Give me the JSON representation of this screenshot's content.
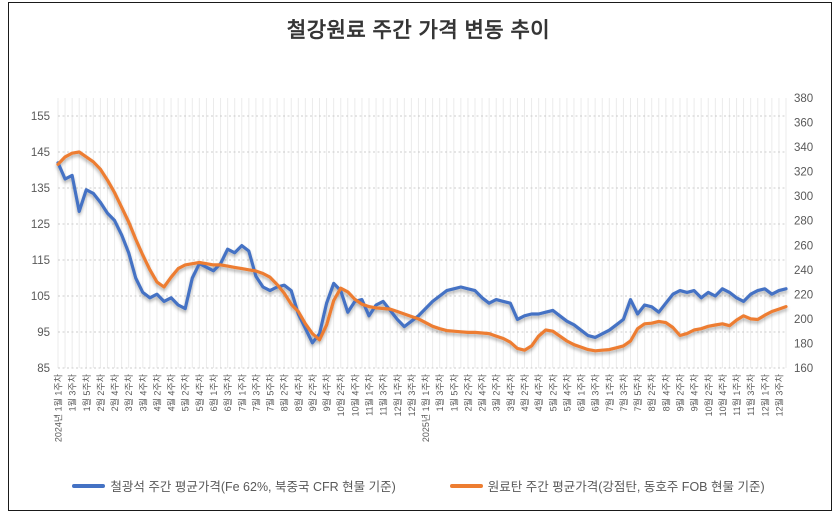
{
  "title": "철강원료 주간 가격 변동 추이",
  "legend": {
    "items": [
      {
        "label": "철광석 주간 평균가격(Fe 62%, 북중국 CFR 현물 기준)",
        "color": "#4472C4"
      },
      {
        "label": "원료탄 주간 평균가격(강점탄, 동호주 FOB 현물 기준)",
        "color": "#ED7D31"
      }
    ]
  },
  "chart_data": {
    "type": "line",
    "title": "철강원료 주간 가격 변동 추이",
    "x_label_every": 2,
    "x_labels": [
      "2024년 1월 1주차",
      "1월 3주차",
      "1월 5주차",
      "2월 2주차",
      "2월 4주차",
      "3월 2주차",
      "3월 4주차",
      "4월 2주차",
      "4월 4주차",
      "5월 2주차",
      "5월 4주차",
      "6월 1주차",
      "6월 3주차",
      "7월 1주차",
      "7월 3주차",
      "7월 5주차",
      "8월 2주차",
      "8월 4주차",
      "9월 2주차",
      "9월 4주차",
      "10월 2주차",
      "10월 4주차",
      "11월 1주차",
      "11월 3주차",
      "12월 1주차",
      "12월 3주차",
      "2025년 1월 1주차",
      "1월 3주차",
      "1월 5주차",
      "2월 2주차",
      "2월 4주차",
      "3월 2주차",
      "3월 4주차",
      "4월 2주차",
      "4월 4주차",
      "5월 2주차",
      "5월 4주차",
      "6월 1주차",
      "6월 3주차",
      "7월 1주차",
      "7월 3주차",
      "7월 5주차",
      "8월 2주차",
      "8월 4주차",
      "9월 2주차",
      "9월 4주차",
      "10월 2주차",
      "10월 4주차",
      "11월 1주차",
      "11월 3주차",
      "12월 1주차",
      "12월 3주차"
    ],
    "left_axis": {
      "min": 85,
      "max": 160,
      "ticks": [
        85,
        95,
        105,
        115,
        125,
        135,
        145,
        155
      ]
    },
    "right_axis": {
      "min": 160,
      "max": 380,
      "ticks": [
        160,
        180,
        200,
        220,
        240,
        260,
        280,
        300,
        320,
        340,
        360,
        380
      ]
    },
    "grid": {
      "vertical_per_week": true,
      "horizontal_dashed": true
    },
    "legend_position": "bottom",
    "series": [
      {
        "name": "철광석 주간 평균가격(Fe 62%, 북중국 CFR 현물 기준)",
        "axis": "left",
        "color": "#4472C4",
        "values": [
          142,
          137.5,
          138.5,
          128.5,
          134.5,
          133.5,
          131,
          128,
          126,
          122,
          117,
          110,
          106,
          104.5,
          105.5,
          103.5,
          104.5,
          102.5,
          101.5,
          110,
          114,
          113,
          112,
          114,
          118,
          117,
          119,
          117.5,
          110.5,
          107.5,
          106.5,
          107.5,
          108,
          106.5,
          100,
          96,
          92,
          94.5,
          103,
          108.5,
          106.5,
          100.5,
          103.5,
          104,
          99.5,
          102.5,
          103.5,
          101,
          98.5,
          96.5,
          98,
          99.5,
          101.5,
          103.5,
          105,
          106.5,
          107,
          107.5,
          107,
          106.5,
          104.5,
          103,
          104,
          103.5,
          103,
          98.5,
          99.5,
          100,
          100,
          100.5,
          101,
          99.5,
          98,
          97,
          95.5,
          94,
          93.5,
          94.5,
          95.5,
          97,
          98.5,
          104,
          100,
          102.5,
          102,
          100.5,
          103,
          105.5,
          106.5,
          106,
          106.5,
          104.5,
          106,
          105,
          107,
          106,
          104.5,
          103.5,
          105.5,
          106.5,
          107,
          105.5,
          106.5,
          107
        ]
      },
      {
        "name": "원료탄 주간 평균가격(강점탄, 동호주 FOB 현물 기준)",
        "axis": "right",
        "color": "#ED7D31",
        "values": [
          326,
          332,
          335,
          336,
          332,
          328,
          322,
          313,
          303,
          291,
          279,
          265,
          252,
          240,
          230,
          226,
          234,
          241,
          244,
          245,
          246,
          245,
          244,
          244,
          243,
          242,
          241,
          240,
          239,
          237,
          234,
          228,
          221,
          212,
          206,
          196,
          188,
          183,
          195,
          215,
          225,
          222,
          216,
          212,
          210,
          209,
          208.5,
          208,
          206,
          204,
          202,
          200,
          197,
          194,
          192,
          190.5,
          190,
          189.5,
          189,
          189,
          188.5,
          188,
          186,
          184,
          181,
          176,
          174.5,
          178,
          186,
          191,
          190,
          186,
          182,
          179,
          177,
          175,
          174,
          174.5,
          175,
          176.5,
          178,
          182,
          192,
          196,
          196.5,
          198,
          197,
          193,
          186.5,
          188,
          191,
          192,
          194,
          195,
          196,
          194.5,
          199,
          202.5,
          200,
          199.5,
          203,
          206,
          208,
          210
        ]
      }
    ]
  }
}
